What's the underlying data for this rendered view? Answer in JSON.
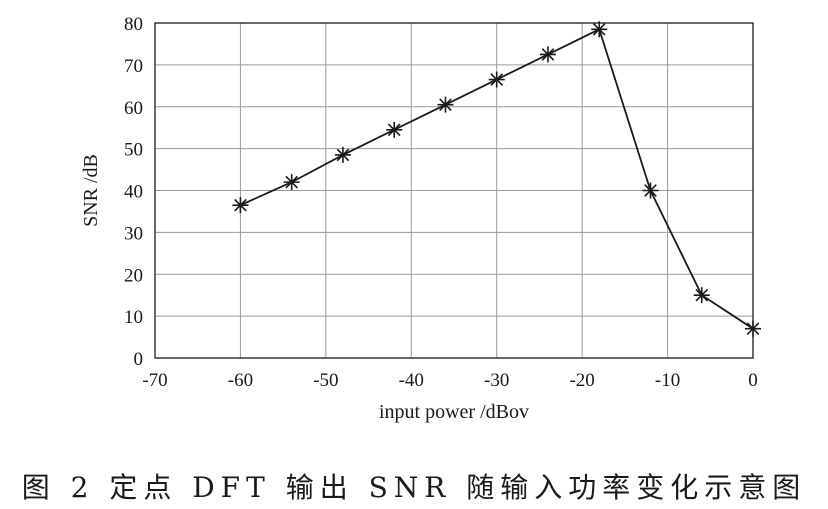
{
  "caption": "图 2   定点 DFT 输出 SNR 随输入功率变化示意图",
  "chart_data": {
    "type": "line",
    "xlabel": "input power /dBov",
    "ylabel": "SNR /dB",
    "xlim": [
      -70,
      0
    ],
    "ylim": [
      0,
      80
    ],
    "xticks": [
      -70,
      -60,
      -50,
      -40,
      -30,
      -20,
      -10,
      0
    ],
    "yticks": [
      0,
      10,
      20,
      30,
      40,
      50,
      60,
      70,
      80
    ],
    "grid": true,
    "marker": "asterisk",
    "series": [
      {
        "x": [
          -60,
          -54,
          -48,
          -42,
          -36,
          -30,
          -24,
          -18,
          -12,
          -6,
          0
        ],
        "y": [
          36.5,
          42,
          48.5,
          54.5,
          60.5,
          66.5,
          72.5,
          78.5,
          40,
          15,
          7
        ]
      }
    ]
  }
}
